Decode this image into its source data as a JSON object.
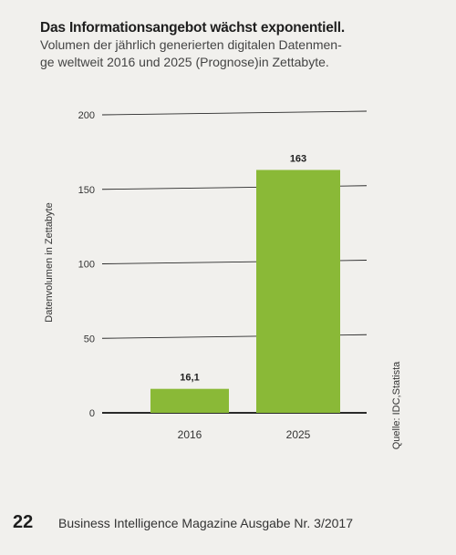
{
  "title": "Das Informationsangebot wächst exponentiell.",
  "subtitle": "Volumen der jährlich generierten digitalen Datenmen-ge weltweit 2016 und 2025 (Prognose)in Zettabyte.",
  "subtitle_line1": "Volumen der jährlich generierten digitalen Datenmen-",
  "subtitle_line2": "ge weltweit 2016 und 2025 (Prognose)in Zettabyte.",
  "source": "Quelle: IDC,Statista",
  "footer": {
    "page_number": "22",
    "publication": "Business Intelligence Magazine Ausgabe Nr. 3/2017"
  },
  "colors": {
    "bar": "#8ab937",
    "grid": "#2a2a2a",
    "background": "#f1f0ed"
  },
  "chart_data": {
    "type": "bar",
    "categories": [
      "2016",
      "2025"
    ],
    "values": [
      16.1,
      163
    ],
    "data_labels": [
      "16,1",
      "163"
    ],
    "ylabel": "Datenvolumen in Zettabyte",
    "xlabel": "",
    "ylim": [
      0,
      200
    ],
    "yticks": [
      0,
      50,
      100,
      150,
      200
    ],
    "grid": true,
    "legend": "none"
  }
}
